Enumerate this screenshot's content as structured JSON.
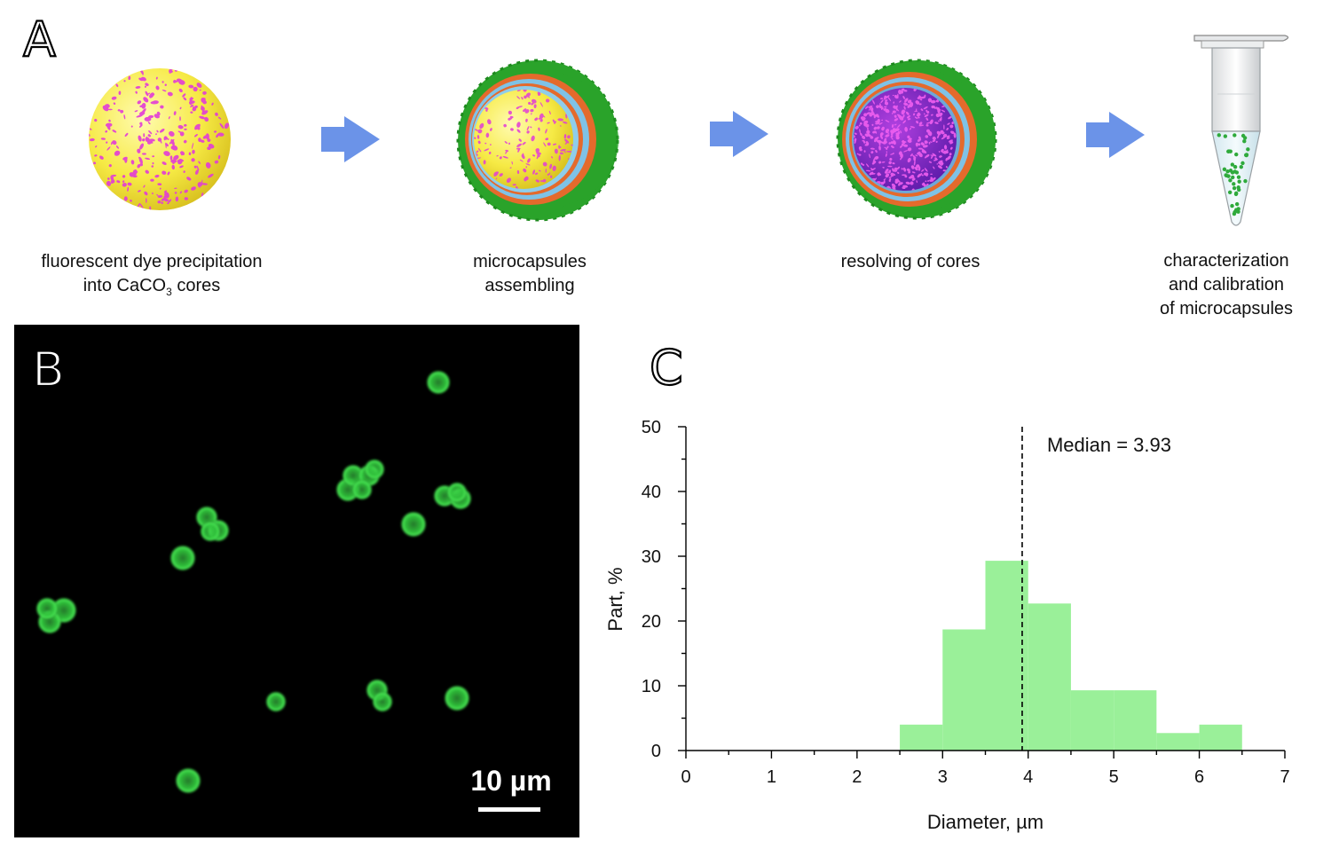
{
  "panels": {
    "a": "A",
    "b": "B",
    "c": "C"
  },
  "scheme": {
    "steps": [
      {
        "label_line1": "fluorescent dye precipitation",
        "label_line2_pre": "into CaCO",
        "label_line2_sub": "3",
        "label_line2_post": " cores"
      },
      {
        "label_line1": "microcapsules",
        "label_line2": "assembling"
      },
      {
        "label_line1": "resolving of cores"
      },
      {
        "label_line1": "characterization",
        "label_line2": "and calibration",
        "label_line3": "of microcapsules"
      }
    ]
  },
  "micrograph": {
    "scale_bar_label": "10 µm"
  },
  "colors": {
    "arrow": "#6b93e8",
    "histogram_fill": "#9af099",
    "capsule_shell": "#2aa32a",
    "core_yellow": "#f5ea4a",
    "core_magenta": "#e23bd8"
  },
  "chart_data": {
    "type": "bar",
    "xlabel": "Diameter, µm",
    "ylabel": "Part, %",
    "xlim": [
      0,
      7
    ],
    "ylim": [
      0,
      50
    ],
    "x_ticks": [
      0,
      1,
      2,
      3,
      4,
      5,
      6,
      7
    ],
    "y_ticks": [
      0,
      10,
      20,
      30,
      40,
      50
    ],
    "bin_width": 0.5,
    "bins": [
      {
        "start": 2.5,
        "end": 3.0,
        "value": 4
      },
      {
        "start": 3.0,
        "end": 3.5,
        "value": 18.7
      },
      {
        "start": 3.5,
        "end": 4.0,
        "value": 29.3
      },
      {
        "start": 4.0,
        "end": 4.5,
        "value": 22.7
      },
      {
        "start": 4.5,
        "end": 5.0,
        "value": 9.3
      },
      {
        "start": 5.0,
        "end": 5.5,
        "value": 9.3
      },
      {
        "start": 5.5,
        "end": 6.0,
        "value": 2.7
      },
      {
        "start": 6.0,
        "end": 6.5,
        "value": 4
      }
    ],
    "median": 3.93,
    "median_label": "Median = 3.93",
    "grid": false
  }
}
